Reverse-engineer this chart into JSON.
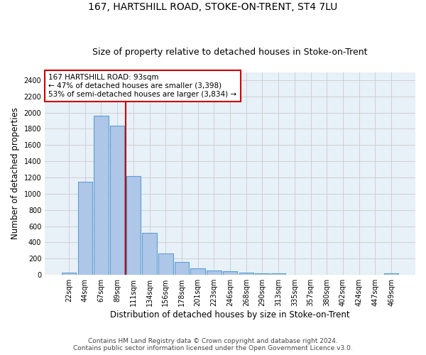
{
  "title": "167, HARTSHILL ROAD, STOKE-ON-TRENT, ST4 7LU",
  "subtitle": "Size of property relative to detached houses in Stoke-on-Trent",
  "xlabel": "Distribution of detached houses by size in Stoke-on-Trent",
  "ylabel": "Number of detached properties",
  "categories": [
    "22sqm",
    "44sqm",
    "67sqm",
    "89sqm",
    "111sqm",
    "134sqm",
    "156sqm",
    "178sqm",
    "201sqm",
    "223sqm",
    "246sqm",
    "268sqm",
    "290sqm",
    "313sqm",
    "335sqm",
    "357sqm",
    "380sqm",
    "402sqm",
    "424sqm",
    "447sqm",
    "469sqm"
  ],
  "values": [
    30,
    1150,
    1960,
    1840,
    1220,
    520,
    265,
    155,
    80,
    50,
    45,
    30,
    20,
    15,
    0,
    0,
    0,
    0,
    0,
    0,
    20
  ],
  "bar_color": "#aec6e8",
  "bar_edge_color": "#5a9fd4",
  "subject_line_color": "#cc0000",
  "annotation_text": "167 HARTSHILL ROAD: 93sqm\n← 47% of detached houses are smaller (3,398)\n53% of semi-detached houses are larger (3,834) →",
  "annotation_box_color": "#cc0000",
  "ylim": [
    0,
    2500
  ],
  "yticks": [
    0,
    200,
    400,
    600,
    800,
    1000,
    1200,
    1400,
    1600,
    1800,
    2000,
    2200,
    2400
  ],
  "footer_line1": "Contains HM Land Registry data © Crown copyright and database right 2024.",
  "footer_line2": "Contains public sector information licensed under the Open Government Licence v3.0.",
  "grid_color": "#cccccc",
  "bg_color": "#e8f0f8",
  "title_fontsize": 10,
  "subtitle_fontsize": 9,
  "axis_label_fontsize": 8.5,
  "tick_fontsize": 7,
  "footer_fontsize": 6.5
}
